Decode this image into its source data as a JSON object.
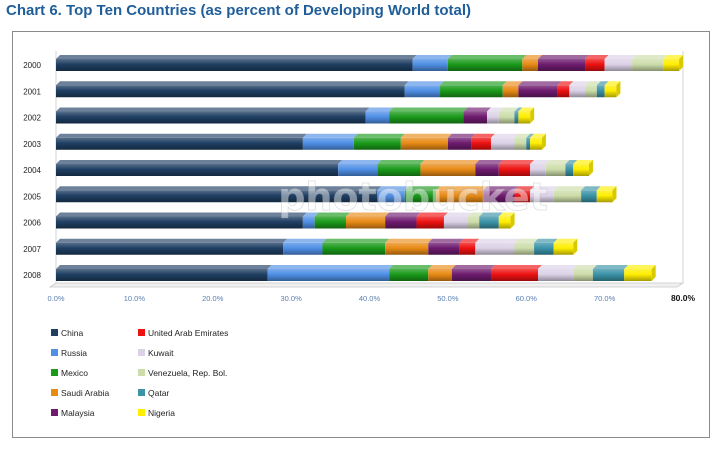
{
  "title": "Chart 6. Top Ten Countries (as percent of Developing World total)",
  "watermark": "photobucket",
  "chart_data": {
    "type": "bar",
    "orientation": "horizontal",
    "stacked": true,
    "categories": [
      "2000",
      "2001",
      "2002",
      "2003",
      "2004",
      "2005",
      "2006",
      "2007",
      "2008"
    ],
    "xlim": [
      0,
      80
    ],
    "xticks": [
      "0.0%",
      "10.0%",
      "20.0%",
      "30.0%",
      "40.0%",
      "50.0%",
      "60.0%",
      "70.0%",
      "80.0%"
    ],
    "grid": false,
    "legend_position": "bottom",
    "series": [
      {
        "name": "China",
        "color": "#1f3f63",
        "values": [
          45.5,
          44.5,
          39.5,
          31.5,
          36.0,
          41.0,
          31.5,
          29.0,
          27.0
        ]
      },
      {
        "name": "Russia",
        "color": "#4f8fe6",
        "values": [
          4.5,
          4.5,
          3.0,
          6.5,
          5.0,
          3.5,
          1.5,
          5.0,
          15.5
        ]
      },
      {
        "name": "Mexico",
        "color": "#1a9a1a",
        "values": [
          9.5,
          8.0,
          9.5,
          6.0,
          5.5,
          4.0,
          4.0,
          8.0,
          5.0
        ]
      },
      {
        "name": "Saudi Arabia",
        "color": "#e88a15",
        "values": [
          2.0,
          2.0,
          0.0,
          6.0,
          7.0,
          6.0,
          5.0,
          5.5,
          3.0
        ]
      },
      {
        "name": "Malaysia",
        "color": "#6e1b6e",
        "values": [
          6.0,
          5.0,
          3.0,
          3.0,
          3.0,
          4.0,
          4.0,
          4.0,
          5.0
        ]
      },
      {
        "name": "United Arab Emirates",
        "color": "#ee1111",
        "values": [
          2.5,
          1.5,
          0.0,
          2.5,
          4.0,
          2.0,
          3.5,
          2.0,
          6.0
        ]
      },
      {
        "name": "Kuwait",
        "color": "#dcd2e8",
        "values": [
          3.5,
          2.0,
          1.5,
          3.0,
          2.0,
          3.0,
          3.0,
          5.0,
          4.5
        ]
      },
      {
        "name": "Venezuela, Rep. Bol.",
        "color": "#ccddaa",
        "values": [
          4.0,
          1.5,
          2.0,
          1.5,
          2.5,
          3.5,
          1.5,
          2.5,
          2.5
        ]
      },
      {
        "name": "Qatar",
        "color": "#3b93a8",
        "values": [
          0.0,
          1.0,
          0.5,
          0.5,
          1.0,
          2.0,
          2.5,
          2.5,
          4.0
        ]
      },
      {
        "name": "Nigeria",
        "color": "#ffee00",
        "values": [
          2.0,
          1.5,
          1.5,
          1.5,
          2.0,
          2.0,
          1.5,
          2.5,
          3.5
        ]
      }
    ]
  }
}
